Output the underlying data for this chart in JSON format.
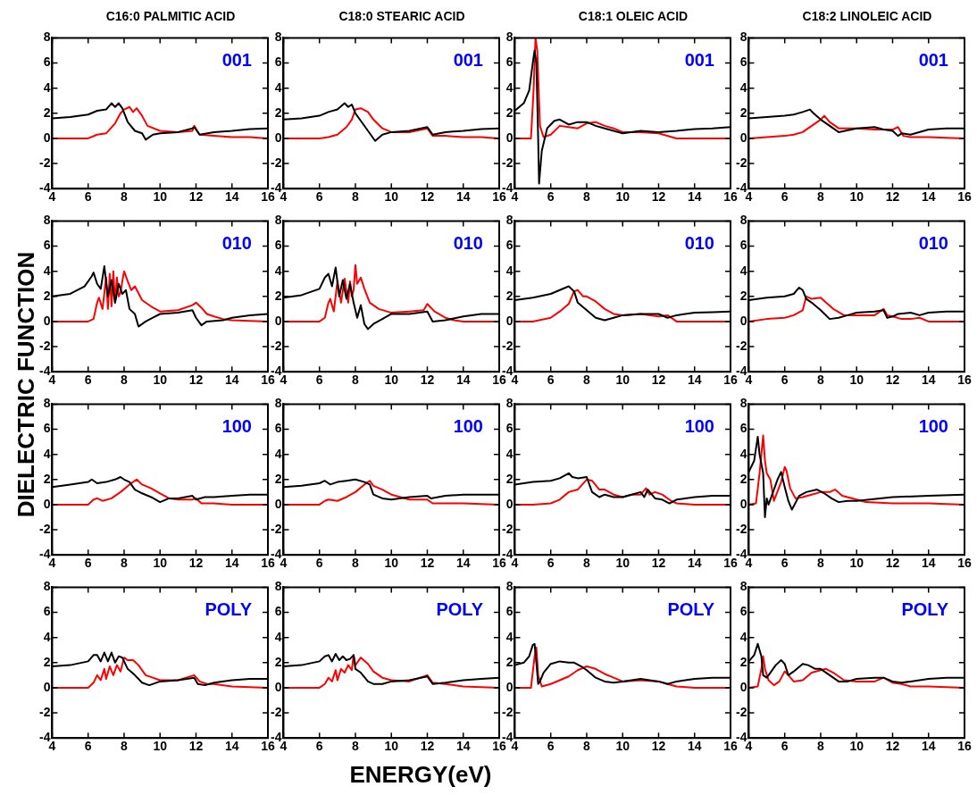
{
  "chart_data": [
    {
      "type": "line",
      "title": "C16:0 PALMITIC ACID",
      "ylabel": "DIELECTRIC FUNCTION",
      "annotations": [
        "001"
      ],
      "xlim": [
        4,
        16
      ],
      "ylim": [
        -4,
        8
      ],
      "xticks": [
        4,
        6,
        8,
        10,
        12,
        14,
        16
      ],
      "yticks": [
        -4,
        -2,
        0,
        2,
        4,
        6,
        8
      ],
      "series": [
        {
          "color": "#000000",
          "x": [
            4,
            5,
            6,
            6.5,
            7,
            7.3,
            7.5,
            7.7,
            7.9,
            8.2,
            8.6,
            9,
            9.2,
            9.6,
            10,
            11,
            11.8,
            11.9,
            12.2,
            13,
            14,
            15,
            16
          ],
          "values": [
            1.6,
            1.7,
            1.9,
            2.2,
            2.3,
            2.8,
            2.5,
            2.8,
            2.4,
            1.3,
            0.6,
            0.4,
            -0.1,
            0.3,
            0.4,
            0.5,
            0.8,
            0.9,
            0.3,
            0.5,
            0.6,
            0.75,
            0.8
          ]
        },
        {
          "color": "#ff0000",
          "x": [
            4,
            6,
            6.5,
            7,
            7.5,
            7.8,
            8,
            8.3,
            8.5,
            8.7,
            9,
            9.3,
            10,
            11,
            11.8,
            11.9,
            12.2,
            13,
            14,
            15,
            16
          ],
          "values": [
            0,
            0,
            0.3,
            0.4,
            1.2,
            2,
            2.3,
            2.5,
            2.1,
            2.4,
            1.8,
            1,
            0.6,
            0.5,
            0.6,
            1,
            0.3,
            0.2,
            0.1,
            0.1,
            0
          ]
        }
      ]
    },
    {
      "type": "line",
      "title": "C18:0 STEARIC ACID",
      "annotations": [
        "001"
      ],
      "xlim": [
        4,
        16
      ],
      "ylim": [
        -4,
        8
      ],
      "xticks": [
        4,
        6,
        8,
        10,
        12,
        14,
        16
      ],
      "yticks": [
        -4,
        -2,
        0,
        2,
        4,
        6,
        8
      ],
      "series": [
        {
          "color": "#000000",
          "x": [
            4,
            5,
            6,
            6.5,
            7,
            7.4,
            7.6,
            7.8,
            8,
            8.3,
            8.7,
            9.1,
            9.5,
            10,
            11,
            12,
            12.3,
            13,
            14,
            15,
            16
          ],
          "values": [
            1.5,
            1.6,
            1.8,
            2.1,
            2.3,
            2.8,
            2.5,
            2.7,
            2,
            1.4,
            0.6,
            -0.2,
            0.3,
            0.5,
            0.6,
            0.9,
            0.3,
            0.5,
            0.6,
            0.75,
            0.8
          ]
        },
        {
          "color": "#ff0000",
          "x": [
            4,
            6,
            6.5,
            7,
            7.5,
            7.8,
            8,
            8.3,
            8.7,
            9,
            9.5,
            10,
            11,
            12,
            12.3,
            13,
            14,
            15,
            16
          ],
          "values": [
            0,
            0,
            0.1,
            0.3,
            0.9,
            1.5,
            2.3,
            2.4,
            2.1,
            1.5,
            0.8,
            0.5,
            0.5,
            0.8,
            0.2,
            0.2,
            0.1,
            0.1,
            0
          ]
        }
      ]
    },
    {
      "type": "line",
      "title": "C18:1 OLEIC ACID",
      "annotations": [
        "001"
      ],
      "xlim": [
        4,
        16
      ],
      "ylim": [
        -4,
        8
      ],
      "xticks": [
        4,
        6,
        8,
        10,
        12,
        14,
        16
      ],
      "yticks": [
        -4,
        -2,
        0,
        2,
        4,
        6,
        8
      ],
      "series": [
        {
          "color": "#000000",
          "x": [
            4,
            4.5,
            4.8,
            5,
            5.1,
            5.2,
            5.3,
            5.35,
            5.5,
            5.8,
            6.2,
            6.5,
            7,
            7.5,
            8,
            8.5,
            9,
            9.5,
            10,
            11,
            12,
            13,
            14,
            15,
            16
          ],
          "values": [
            2.2,
            2.8,
            3.8,
            6,
            7,
            6,
            0,
            -3.6,
            -1,
            0.8,
            1.4,
            1.5,
            1.1,
            1.3,
            1.3,
            1,
            0.8,
            0.6,
            0.4,
            0.6,
            0.5,
            0.6,
            0.75,
            0.8,
            0.9
          ]
        },
        {
          "color": "#ff0000",
          "x": [
            4,
            4.9,
            5.05,
            5.15,
            5.25,
            5.4,
            5.6,
            6,
            6.5,
            7,
            7.5,
            8,
            8.5,
            9,
            9.5,
            10,
            11,
            12,
            13,
            14,
            16
          ],
          "values": [
            0,
            0,
            4,
            8,
            7,
            1,
            0.1,
            0.3,
            1,
            0.9,
            0.8,
            1.2,
            1.3,
            1,
            0.8,
            0.5,
            0.5,
            0.4,
            0,
            0,
            0
          ]
        }
      ]
    },
    {
      "type": "line",
      "title": "C18:2 LINOLEIC ACID",
      "annotations": [
        "001"
      ],
      "xlim": [
        4,
        16
      ],
      "ylim": [
        -4,
        8
      ],
      "xticks": [
        4,
        6,
        8,
        10,
        12,
        14,
        16
      ],
      "yticks": [
        -4,
        -2,
        0,
        2,
        4,
        6,
        8
      ],
      "series": [
        {
          "color": "#000000",
          "x": [
            4,
            5,
            6,
            6.5,
            7,
            7.4,
            7.6,
            8,
            8.5,
            9,
            10,
            11,
            11.5,
            12,
            12.3,
            12.5,
            13,
            14,
            15,
            16
          ],
          "values": [
            1.6,
            1.7,
            1.8,
            1.9,
            2.1,
            2.3,
            2,
            1.5,
            1,
            0.5,
            0.8,
            0.9,
            0.7,
            0.6,
            0.2,
            0.4,
            0.3,
            0.7,
            0.8,
            0.8
          ]
        },
        {
          "color": "#ff0000",
          "x": [
            4,
            5,
            6,
            6.5,
            7,
            7.5,
            8,
            8.2,
            8.5,
            9,
            10,
            11,
            11.5,
            12,
            12.3,
            12.6,
            13,
            14,
            16
          ],
          "values": [
            0,
            0.1,
            0.2,
            0.3,
            0.5,
            1,
            1.5,
            1.8,
            1.3,
            0.8,
            0.8,
            0.7,
            0.7,
            0.7,
            0.9,
            0.2,
            0.1,
            0.1,
            0
          ]
        }
      ]
    },
    {
      "type": "line",
      "annotations": [
        "010"
      ],
      "xlim": [
        4,
        16
      ],
      "ylim": [
        -4,
        8
      ],
      "xticks": [
        4,
        6,
        8,
        10,
        12,
        14,
        16
      ],
      "yticks": [
        -4,
        -2,
        0,
        2,
        4,
        6,
        8
      ],
      "series": [
        {
          "color": "#000000",
          "x": [
            4,
            5,
            5.8,
            6.2,
            6.3,
            6.5,
            6.7,
            6.9,
            7.1,
            7.3,
            7.5,
            7.7,
            7.9,
            8.1,
            8.3,
            8.6,
            8.8,
            9.2,
            9.6,
            10,
            11,
            11.8,
            12,
            12.3,
            12.6,
            13.5,
            14,
            15,
            16
          ],
          "values": [
            2,
            2.2,
            2.8,
            3.6,
            3.9,
            3,
            2.6,
            4.4,
            2,
            3.3,
            1.5,
            3,
            2.2,
            2.5,
            1,
            0.6,
            -0.4,
            0,
            0.3,
            0.6,
            0.7,
            0.9,
            0.3,
            -0.3,
            0,
            0.1,
            0.3,
            0.5,
            0.6
          ]
        },
        {
          "color": "#ff0000",
          "x": [
            4,
            6,
            6.3,
            6.5,
            6.6,
            6.8,
            7,
            7.1,
            7.2,
            7.3,
            7.4,
            7.5,
            7.6,
            7.7,
            7.8,
            7.9,
            8,
            8.2,
            8.4,
            8.6,
            9,
            9.5,
            10,
            11,
            11.8,
            12,
            12.3,
            12.6,
            13,
            13.5,
            14,
            16
          ],
          "values": [
            0,
            0,
            0.2,
            1.5,
            1.9,
            1,
            3.5,
            1,
            3.8,
            1.2,
            4,
            1.5,
            3.5,
            2,
            2.3,
            3.2,
            4,
            3.2,
            2.5,
            2.8,
            1.7,
            1.2,
            0.8,
            0.9,
            1.3,
            1.5,
            1.1,
            0.6,
            0.4,
            0.2,
            0.1,
            0
          ]
        }
      ]
    },
    {
      "type": "line",
      "annotations": [
        "010"
      ],
      "xlim": [
        4,
        16
      ],
      "ylim": [
        -4,
        8
      ],
      "xticks": [
        4,
        6,
        8,
        10,
        12,
        14,
        16
      ],
      "yticks": [
        -4,
        -2,
        0,
        2,
        4,
        6,
        8
      ],
      "series": [
        {
          "color": "#000000",
          "x": [
            4,
            5,
            6,
            6.3,
            6.5,
            6.7,
            6.9,
            7.1,
            7.3,
            7.5,
            7.7,
            7.9,
            8.1,
            8.3,
            8.5,
            8.7,
            9,
            9.5,
            10,
            11,
            12,
            12.3,
            13,
            14,
            15,
            16
          ],
          "values": [
            1.9,
            2.1,
            2.6,
            3.5,
            3.8,
            2.8,
            4.3,
            2,
            3.3,
            1.8,
            3,
            1.5,
            0.3,
            1.3,
            -0.2,
            -0.6,
            -0.2,
            0.2,
            0.6,
            0.6,
            0.8,
            0,
            0.1,
            0.4,
            0.6,
            0.6
          ]
        },
        {
          "color": "#ff0000",
          "x": [
            4,
            6,
            6.3,
            6.5,
            6.6,
            6.8,
            7,
            7.2,
            7.4,
            7.6,
            7.7,
            7.8,
            7.9,
            8,
            8.1,
            8.3,
            8.5,
            8.8,
            9.3,
            10,
            11,
            11.8,
            12,
            12.4,
            13,
            13.5,
            14,
            16
          ],
          "values": [
            0,
            0,
            0.3,
            1.5,
            1.8,
            0.8,
            3.2,
            1.5,
            3.4,
            1.5,
            3.2,
            2,
            2.5,
            4.5,
            3,
            3.5,
            2.6,
            1.5,
            1,
            0.7,
            0.8,
            0.9,
            1.4,
            0.8,
            0.3,
            0.1,
            0,
            0
          ]
        }
      ]
    },
    {
      "type": "line",
      "annotations": [
        "010"
      ],
      "xlim": [
        4,
        16
      ],
      "ylim": [
        -4,
        8
      ],
      "xticks": [
        4,
        6,
        8,
        10,
        12,
        14,
        16
      ],
      "yticks": [
        -4,
        -2,
        0,
        2,
        4,
        6,
        8
      ],
      "series": [
        {
          "color": "#000000",
          "x": [
            4,
            5,
            6,
            6.5,
            7,
            7.3,
            7.5,
            8,
            8.5,
            9,
            9.5,
            10,
            11,
            11.5,
            12,
            12.5,
            13,
            14,
            15,
            16
          ],
          "values": [
            1.7,
            1.9,
            2.2,
            2.5,
            2.8,
            2.4,
            1.5,
            0.9,
            0.3,
            0.1,
            0.3,
            0.5,
            0.6,
            0.6,
            0.6,
            0.3,
            0.5,
            0.7,
            0.75,
            0.8
          ]
        },
        {
          "color": "#ff0000",
          "x": [
            4,
            5,
            6,
            6.5,
            7,
            7.3,
            7.5,
            7.8,
            8,
            8.5,
            9,
            9.5,
            10,
            11,
            12,
            12.5,
            13,
            14,
            16
          ],
          "values": [
            0,
            0,
            0.3,
            0.8,
            1.4,
            2.4,
            2.5,
            2,
            2,
            1.6,
            1,
            0.6,
            0.5,
            0.6,
            0.4,
            0.5,
            0,
            0,
            0
          ]
        }
      ]
    },
    {
      "type": "line",
      "annotations": [
        "010"
      ],
      "xlim": [
        4,
        16
      ],
      "ylim": [
        -4,
        8
      ],
      "xticks": [
        4,
        6,
        8,
        10,
        12,
        14,
        16
      ],
      "yticks": [
        -4,
        -2,
        0,
        2,
        4,
        6,
        8
      ],
      "series": [
        {
          "color": "#000000",
          "x": [
            4,
            5,
            6,
            6.5,
            6.8,
            7,
            7.2,
            7.5,
            8,
            8.5,
            9,
            9.5,
            10,
            11,
            11.5,
            11.7,
            12,
            12.3,
            13,
            13.5,
            14,
            15,
            16
          ],
          "values": [
            1.7,
            1.9,
            2,
            2.2,
            2.7,
            2.5,
            1.8,
            1.5,
            0.9,
            0.2,
            0.3,
            0.5,
            0.7,
            0.8,
            0.9,
            0.3,
            0.4,
            0.6,
            0.7,
            0.5,
            0.7,
            0.8,
            0.8
          ]
        },
        {
          "color": "#ff0000",
          "x": [
            4,
            5,
            6,
            6.5,
            7,
            7.2,
            7.5,
            8,
            8.3,
            8.7,
            9.3,
            10,
            11,
            11.5,
            11.7,
            12,
            12.5,
            13,
            13.5,
            14,
            16
          ],
          "values": [
            0,
            0.2,
            0.3,
            0.5,
            0.9,
            2,
            1.8,
            1.9,
            1.5,
            1,
            0.5,
            0.5,
            0.5,
            1,
            0.5,
            0.4,
            0.2,
            0.2,
            0.3,
            0,
            0
          ]
        }
      ]
    },
    {
      "type": "line",
      "annotations": [
        "100"
      ],
      "xlim": [
        4,
        16
      ],
      "ylim": [
        -4,
        8
      ],
      "xticks": [
        4,
        6,
        8,
        10,
        12,
        14,
        16
      ],
      "yticks": [
        -4,
        -2,
        0,
        2,
        4,
        6,
        8
      ],
      "series": [
        {
          "color": "#000000",
          "x": [
            4,
            5,
            6,
            6.2,
            6.5,
            7,
            7.5,
            7.8,
            8,
            8.3,
            8.6,
            9,
            9.5,
            10,
            10.5,
            11,
            11.8,
            12,
            12.5,
            13,
            14,
            15,
            16
          ],
          "values": [
            1.4,
            1.6,
            1.8,
            2,
            1.7,
            1.8,
            2,
            2.2,
            2,
            1.8,
            1.2,
            0.9,
            0.6,
            0.2,
            0.5,
            0.5,
            0.7,
            0.4,
            0.6,
            0.6,
            0.7,
            0.8,
            0.8
          ]
        },
        {
          "color": "#ff0000",
          "x": [
            4,
            6,
            6.3,
            6.5,
            6.8,
            7.3,
            7.8,
            8.3,
            8.7,
            9,
            9.5,
            10,
            10.5,
            11,
            11.8,
            12,
            12.3,
            13,
            14,
            16
          ],
          "values": [
            0,
            0,
            0.4,
            0.5,
            0.3,
            0.5,
            1,
            1.6,
            2,
            1.6,
            1.3,
            0.9,
            0.5,
            0.4,
            0.4,
            0.5,
            0.1,
            0.1,
            0,
            0
          ]
        }
      ]
    },
    {
      "type": "line",
      "annotations": [
        "100"
      ],
      "xlim": [
        4,
        16
      ],
      "ylim": [
        -4,
        8
      ],
      "xticks": [
        4,
        6,
        8,
        10,
        12,
        14,
        16
      ],
      "yticks": [
        -4,
        -2,
        0,
        2,
        4,
        6,
        8
      ],
      "series": [
        {
          "color": "#000000",
          "x": [
            4,
            5,
            6,
            6.3,
            6.6,
            7,
            7.5,
            8,
            8.5,
            8.8,
            9,
            9.5,
            10,
            11,
            12,
            12.2,
            13,
            14,
            15,
            16
          ],
          "values": [
            1.4,
            1.5,
            1.7,
            1.9,
            1.6,
            1.8,
            1.9,
            2,
            1.8,
            1.6,
            0.8,
            0.5,
            0.4,
            0.6,
            0.7,
            0.5,
            0.7,
            0.8,
            0.8,
            0.8
          ]
        },
        {
          "color": "#ff0000",
          "x": [
            4,
            6,
            6.3,
            6.5,
            7,
            7.5,
            8,
            8.5,
            8.8,
            9,
            9.5,
            10,
            11,
            12,
            12.3,
            13,
            14,
            16
          ],
          "values": [
            0,
            0,
            0.3,
            0.4,
            0.3,
            0.6,
            1,
            1.6,
            1.9,
            1.5,
            1.2,
            0.8,
            0.4,
            0.4,
            0.1,
            0.1,
            0.1,
            0
          ]
        }
      ]
    },
    {
      "type": "line",
      "annotations": [
        "100"
      ],
      "xlim": [
        4,
        16
      ],
      "ylim": [
        -4,
        8
      ],
      "xticks": [
        4,
        6,
        8,
        10,
        12,
        14,
        16
      ],
      "yticks": [
        -4,
        -2,
        0,
        2,
        4,
        6,
        8
      ],
      "series": [
        {
          "color": "#000000",
          "x": [
            4,
            5,
            6,
            6.5,
            7,
            7.2,
            7.5,
            8,
            8.3,
            8.7,
            9,
            9.5,
            10,
            10.5,
            11,
            11.2,
            11.4,
            11.8,
            12.2,
            12.6,
            13,
            14,
            15,
            16
          ],
          "values": [
            1.6,
            1.8,
            1.9,
            2.1,
            2.5,
            2.2,
            2.1,
            2.2,
            1,
            0.6,
            0.8,
            0.6,
            0.6,
            0.8,
            1,
            0.6,
            1.2,
            0.5,
            0.4,
            0.1,
            0.4,
            0.6,
            0.7,
            0.7
          ]
        },
        {
          "color": "#ff0000",
          "x": [
            4,
            5,
            6,
            6.5,
            7,
            7.5,
            8,
            8.3,
            8.7,
            9,
            9.5,
            10,
            10.5,
            11,
            11.3,
            11.5,
            11.8,
            12.2,
            12.7,
            13,
            14,
            16
          ],
          "values": [
            0,
            0,
            0.1,
            0.4,
            1,
            1.2,
            2,
            1.9,
            1.2,
            1.2,
            0.8,
            0.6,
            0.8,
            0.8,
            1.3,
            0.8,
            1,
            0.8,
            0.3,
            0.1,
            0,
            0
          ]
        }
      ]
    },
    {
      "type": "line",
      "annotations": [
        "100"
      ],
      "xlim": [
        4,
        16
      ],
      "ylim": [
        -4,
        8
      ],
      "xticks": [
        4,
        6,
        8,
        10,
        12,
        14,
        16
      ],
      "yticks": [
        -4,
        -2,
        0,
        2,
        4,
        6,
        8
      ],
      "series": [
        {
          "color": "#000000",
          "x": [
            4,
            4.3,
            4.5,
            4.6,
            4.8,
            4.9,
            5,
            5.1,
            5.3,
            5.6,
            5.8,
            6,
            6.2,
            6.4,
            6.8,
            7.2,
            7.8,
            8.2,
            8.6,
            9,
            9.5,
            10,
            12,
            14,
            16
          ],
          "values": [
            2.6,
            3.5,
            5.4,
            4,
            2.5,
            -1,
            0.5,
            0,
            0.8,
            2,
            2.6,
            1.4,
            0.3,
            -0.4,
            0.7,
            1,
            1.2,
            0.9,
            0.5,
            0.2,
            0.3,
            0.3,
            0.6,
            0.7,
            0.8
          ]
        },
        {
          "color": "#ff0000",
          "x": [
            4,
            4.4,
            4.6,
            4.8,
            4.9,
            5,
            5.2,
            5.4,
            5.8,
            6,
            6.1,
            6.3,
            6.6,
            7,
            7.5,
            8,
            8.5,
            8.8,
            9.2,
            10,
            10.5,
            12,
            14,
            16
          ],
          "values": [
            0,
            0.1,
            2.5,
            5.5,
            3.5,
            2.5,
            2,
            0.3,
            1.8,
            3,
            2.7,
            1.3,
            0.5,
            0.6,
            0.8,
            1,
            1,
            1.2,
            0.7,
            0.4,
            0.2,
            0.1,
            0.1,
            0
          ]
        }
      ]
    },
    {
      "type": "line",
      "annotations": [
        "POLY"
      ],
      "xlim": [
        4,
        16
      ],
      "ylim": [
        -4,
        8
      ],
      "xticks": [
        4,
        6,
        8,
        10,
        12,
        14,
        16
      ],
      "yticks": [
        -4,
        -2,
        0,
        2,
        4,
        6,
        8
      ],
      "series": [
        {
          "color": "#000000",
          "x": [
            4,
            5,
            6,
            6.3,
            6.5,
            6.7,
            6.9,
            7.1,
            7.3,
            7.5,
            7.7,
            7.9,
            8.2,
            8.6,
            9,
            9.4,
            10,
            11,
            11.9,
            12.1,
            12.5,
            13,
            14,
            15,
            16
          ],
          "values": [
            1.7,
            1.8,
            2.1,
            2.6,
            2.6,
            2.1,
            2.8,
            2.1,
            2.8,
            2,
            2.5,
            2.4,
            1.5,
            1,
            0.4,
            0.2,
            0.5,
            0.6,
            0.8,
            0.3,
            0.2,
            0.4,
            0.6,
            0.7,
            0.7
          ]
        },
        {
          "color": "#ff0000",
          "x": [
            4,
            6,
            6.3,
            6.5,
            6.7,
            6.9,
            7,
            7.2,
            7.4,
            7.6,
            7.8,
            8,
            8.2,
            8.5,
            8.8,
            9.2,
            10,
            11,
            11.9,
            12.2,
            12.6,
            13,
            14,
            16
          ],
          "values": [
            0,
            0,
            0.4,
            1,
            0.6,
            1.5,
            0.7,
            1.7,
            1,
            1.8,
            1.3,
            2.4,
            2.2,
            2.2,
            1.8,
            1,
            0.6,
            0.6,
            1,
            0.5,
            0.3,
            0.3,
            0.1,
            0
          ]
        }
      ]
    },
    {
      "type": "line",
      "xlabel": "ENERGY(eV)",
      "annotations": [
        "POLY"
      ],
      "xlim": [
        4,
        16
      ],
      "ylim": [
        -4,
        8
      ],
      "xticks": [
        4,
        6,
        8,
        10,
        12,
        14,
        16
      ],
      "yticks": [
        -4,
        -2,
        0,
        2,
        4,
        6,
        8
      ],
      "series": [
        {
          "color": "#000000",
          "x": [
            4,
            5,
            6,
            6.3,
            6.5,
            6.7,
            6.9,
            7.1,
            7.3,
            7.5,
            7.7,
            7.9,
            8,
            8.3,
            8.7,
            9,
            9.5,
            10,
            11,
            12,
            12.3,
            13,
            14,
            15,
            16
          ],
          "values": [
            1.7,
            1.8,
            2.1,
            2.5,
            2.6,
            2.1,
            2.7,
            2.2,
            2.5,
            2.2,
            2.3,
            2.6,
            1.5,
            1.2,
            0.5,
            0.3,
            0.3,
            0.5,
            0.6,
            0.9,
            0.3,
            0.4,
            0.6,
            0.7,
            0.8
          ]
        },
        {
          "color": "#ff0000",
          "x": [
            4,
            6,
            6.3,
            6.5,
            6.7,
            6.9,
            7,
            7.2,
            7.4,
            7.6,
            7.8,
            7.9,
            8,
            8.3,
            8.7,
            9,
            9.5,
            10,
            11,
            12,
            12.3,
            13,
            14,
            16
          ],
          "values": [
            0,
            0,
            0.3,
            0.8,
            0.5,
            1.4,
            0.6,
            1.5,
            1.2,
            1.8,
            1.4,
            2.6,
            1.8,
            2.4,
            1.9,
            1.3,
            0.8,
            0.6,
            0.5,
            1,
            0.4,
            0.3,
            0.1,
            0
          ]
        }
      ]
    },
    {
      "type": "line",
      "annotations": [
        "POLY"
      ],
      "xlim": [
        4,
        16
      ],
      "ylim": [
        -4,
        8
      ],
      "xticks": [
        4,
        6,
        8,
        10,
        12,
        14,
        16
      ],
      "yticks": [
        -4,
        -2,
        0,
        2,
        4,
        6,
        8
      ],
      "series": [
        {
          "color": "#000000",
          "x": [
            4,
            4.5,
            4.8,
            5,
            5.1,
            5.2,
            5.3,
            5.4,
            5.6,
            6,
            6.5,
            7,
            7.3,
            7.7,
            8,
            8.5,
            9,
            9.5,
            10,
            11,
            12,
            12.5,
            13,
            14,
            15,
            16
          ],
          "values": [
            1.8,
            2,
            2.5,
            3.4,
            3.5,
            2,
            0.3,
            0.5,
            1.2,
            1.9,
            2.1,
            2,
            2,
            1.7,
            1.4,
            0.8,
            0.5,
            0.4,
            0.5,
            0.7,
            0.5,
            0.3,
            0.5,
            0.7,
            0.8,
            0.8
          ]
        },
        {
          "color": "#ff0000",
          "x": [
            4,
            4.9,
            5.1,
            5.2,
            5.3,
            5.5,
            6,
            6.5,
            7,
            7.5,
            8,
            8.5,
            9,
            9.5,
            10,
            11,
            12,
            12.5,
            13,
            14,
            16
          ],
          "values": [
            0,
            0,
            2.5,
            3.2,
            1,
            0.1,
            0.3,
            0.6,
            0.9,
            1.4,
            1.7,
            1.5,
            1.1,
            0.8,
            0.5,
            0.6,
            0.5,
            0.3,
            0.1,
            0,
            0
          ]
        }
      ]
    },
    {
      "type": "line",
      "annotations": [
        "POLY"
      ],
      "xlim": [
        4,
        16
      ],
      "ylim": [
        -4,
        8
      ],
      "xticks": [
        4,
        6,
        8,
        10,
        12,
        14,
        16
      ],
      "yticks": [
        -4,
        -2,
        0,
        2,
        4,
        6,
        8
      ],
      "series": [
        {
          "color": "#000000",
          "x": [
            4,
            4.3,
            4.5,
            4.7,
            4.8,
            5,
            5.2,
            5.5,
            5.8,
            6,
            6.2,
            6.5,
            7,
            7.3,
            7.7,
            8,
            8.5,
            9,
            9.5,
            10,
            11,
            11.5,
            12,
            12.5,
            13,
            14,
            15,
            16
          ],
          "values": [
            2.1,
            2.6,
            3.5,
            2.5,
            1,
            0.8,
            1.2,
            1.8,
            2.2,
            1.9,
            1,
            1.3,
            1.9,
            1.8,
            1.5,
            1.5,
            1,
            0.5,
            0.5,
            0.7,
            0.8,
            0.8,
            0.5,
            0.4,
            0.5,
            0.7,
            0.8,
            0.8
          ]
        },
        {
          "color": "#ff0000",
          "x": [
            4,
            4.5,
            4.7,
            4.8,
            4.9,
            5.1,
            5.4,
            5.7,
            6,
            6.2,
            6.5,
            7,
            7.5,
            8,
            8.3,
            8.7,
            9.3,
            10,
            11,
            11.5,
            12,
            12.5,
            13,
            14,
            16
          ],
          "values": [
            0,
            0.1,
            1.5,
            2.5,
            1.5,
            0.6,
            0.2,
            0.5,
            1.3,
            1,
            0.5,
            0.6,
            1.2,
            1.4,
            1.5,
            1.2,
            0.6,
            0.5,
            0.5,
            0.8,
            0.4,
            0.3,
            0.1,
            0.1,
            0
          ]
        }
      ]
    }
  ]
}
